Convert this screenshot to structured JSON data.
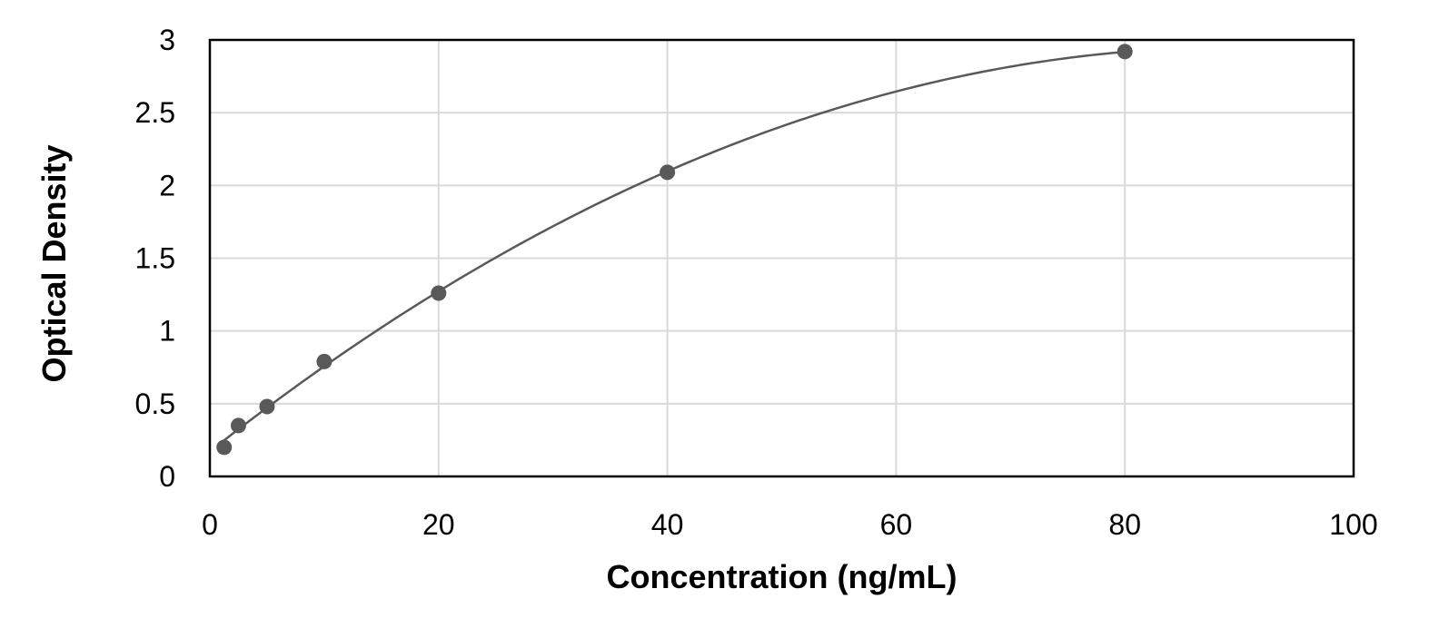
{
  "chart_data": {
    "type": "scatter",
    "xlabel": "Concentration (ng/mL)",
    "ylabel": "Optical Density",
    "xlim": [
      0,
      100
    ],
    "ylim": [
      0,
      3
    ],
    "x_ticks": [
      "0",
      "20",
      "40",
      "60",
      "80",
      "100"
    ],
    "y_ticks": [
      "0",
      "0.5",
      "1",
      "1.5",
      "2",
      "2.5",
      "3"
    ],
    "grid": true,
    "legend": "none",
    "series": [
      {
        "x": [
          1.25,
          2.5,
          5,
          10,
          20,
          40,
          80
        ],
        "y": [
          0.2,
          0.35,
          0.48,
          0.79,
          1.26,
          2.09,
          2.92
        ]
      }
    ],
    "trendline": {
      "type": "polynomial-fit",
      "x_range": [
        1.25,
        80
      ]
    },
    "colors": {
      "points": "#595959",
      "line": "#595959",
      "grid": "#d9d9d9",
      "frame": "#000000"
    }
  }
}
